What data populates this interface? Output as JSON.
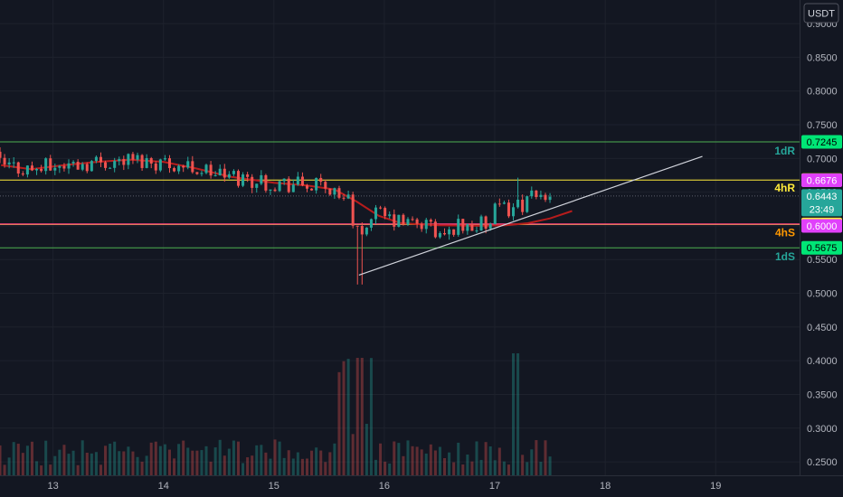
{
  "chart_data": {
    "type": "candlestick",
    "currency": "USDT",
    "y_axis": {
      "ticks": [
        "0.9000",
        "0.8500",
        "0.8000",
        "0.7500",
        "0.7000",
        "0.6500",
        "0.6000",
        "0.5500",
        "0.5000",
        "0.4500",
        "0.4000",
        "0.3500",
        "0.3000",
        "0.2500"
      ],
      "ylim": [
        0.23,
        0.935
      ],
      "scale": "linear"
    },
    "x_axis": {
      "ticks": [
        "13",
        "14",
        "15",
        "16",
        "17",
        "18",
        "19"
      ],
      "xlim": [
        12.52,
        19.76
      ]
    },
    "levels": [
      {
        "name": "1dR",
        "price": 0.7245,
        "price_label": "0.7245",
        "color": "#4caf50",
        "label_color": "#26a69a",
        "badge_bg": "#00e676"
      },
      {
        "name": "4hR",
        "price": 0.668,
        "price_label": "0.6680",
        "color": "#ffeb3b",
        "label_color": "#ffeb3b",
        "badge_bg": "#ffeb3b"
      },
      {
        "name": "4hS",
        "price": 0.6021,
        "price_label": "0.6021",
        "color": "#ffeb3b",
        "label_color": "#ff9800",
        "badge_bg": "#ffeb3b"
      },
      {
        "name": "1dS",
        "price": 0.5675,
        "price_label": "0.5675",
        "color": "#4caf50",
        "label_color": "#26a69a",
        "badge_bg": "#00e676"
      }
    ],
    "extra_labels": [
      {
        "text": "0.6676",
        "price": 0.6676,
        "bg": "#e040fb",
        "fg": "#ffffff"
      },
      {
        "text": "0.6000",
        "price": 0.6,
        "bg": "#e040fb",
        "fg": "#ffffff"
      }
    ],
    "current_price": {
      "value": 0.6443,
      "label": "0.6443",
      "countdown": "23:49",
      "color": "#26a69a"
    },
    "pink_line": {
      "price": 0.6028,
      "color": "#ff4081"
    },
    "dotted_line": {
      "price": 0.6443
    },
    "trendline": {
      "start": {
        "x": 15.77,
        "y": 0.527
      },
      "end": {
        "x": 18.88,
        "y": 0.703
      },
      "color": "#d1d4dc"
    },
    "ma": {
      "color": "#b71c1c",
      "points": [
        [
          12.53,
          0.69
        ],
        [
          12.8,
          0.684
        ],
        [
          13.1,
          0.69
        ],
        [
          13.4,
          0.695
        ],
        [
          13.7,
          0.698
        ],
        [
          14.0,
          0.695
        ],
        [
          14.3,
          0.685
        ],
        [
          14.6,
          0.673
        ],
        [
          15.0,
          0.664
        ],
        [
          15.3,
          0.66
        ],
        [
          15.55,
          0.654
        ],
        [
          15.75,
          0.636
        ],
        [
          15.95,
          0.615
        ],
        [
          16.15,
          0.604
        ],
        [
          16.5,
          0.601
        ],
        [
          16.85,
          0.6
        ],
        [
          17.1,
          0.601
        ],
        [
          17.3,
          0.604
        ],
        [
          17.5,
          0.611
        ],
        [
          17.7,
          0.622
        ]
      ]
    },
    "candles": [
      [
        12.5,
        0.7131,
        0.7121,
        0.7131,
        0.7121
      ],
      [
        12.53,
        0.7121,
        0.7131,
        0.7131,
        0.7121
      ],
      [
        12.56,
        0.7131,
        0.7121,
        0.7131,
        0.7121
      ],
      [
        12.59,
        0.7121,
        0.7131,
        0.7131,
        0.7121
      ],
      [
        12.62,
        0.7131,
        0.7121,
        0.7131,
        0.7121
      ],
      [
        12.65,
        0.7121,
        0.7131,
        0.7131,
        0.7121
      ],
      [
        12.68,
        0.7131,
        0.7121,
        0.7131,
        0.7121
      ],
      [
        12.71,
        0.7121,
        0.7131,
        0.7131,
        0.7121
      ],
      [
        12.74,
        0.7131,
        0.7121,
        0.7131,
        0.7121
      ],
      [
        12.77,
        0.7121,
        0.7131,
        0.7131,
        0.7121
      ],
      [
        12.8,
        0.7131,
        0.7121,
        0.7131,
        0.7121
      ],
      [
        12.83,
        0.7121,
        0.7131,
        0.7131,
        0.7121
      ],
      [
        12.86,
        0.7131,
        0.7121,
        0.7131,
        0.7121
      ],
      [
        12.89,
        0.7121,
        0.7131,
        0.7131,
        0.7121
      ],
      [
        12.92,
        0.7131,
        0.7121,
        0.7131,
        0.7121
      ],
      [
        12.95,
        0.7121,
        0.7131,
        0.7131,
        0.7121
      ],
      [
        12.98,
        0.7131,
        0.7121,
        0.7131,
        0.7121
      ],
      [
        13.01,
        0.7121,
        0.7131,
        0.7131,
        0.7121
      ],
      [
        13.04,
        0.7131,
        0.7121,
        0.7131,
        0.7121
      ],
      [
        13.07,
        0.7121,
        0.7131,
        0.7131,
        0.7121
      ],
      [
        13.1,
        0.7131,
        0.7121,
        0.7131,
        0.7121
      ],
      [
        13.13,
        0.7121,
        0.7131,
        0.7131,
        0.7121
      ],
      [
        13.16,
        0.7131,
        0.7121,
        0.7131,
        0.7121
      ],
      [
        13.19,
        0.7121,
        0.7131,
        0.7131,
        0.7121
      ],
      [
        13.22,
        0.7131,
        0.7121,
        0.7131,
        0.7121
      ],
      [
        13.25,
        0.7121,
        0.7131,
        0.7131,
        0.7121
      ],
      [
        13.28,
        0.7131,
        0.7121,
        0.7131,
        0.7121
      ],
      [
        13.31,
        0.7121,
        0.7131,
        0.7131,
        0.7121
      ],
      [
        13.34,
        0.7131,
        0.7121,
        0.7131,
        0.7121
      ],
      [
        13.37,
        0.7121,
        0.7131,
        0.7131,
        0.7121
      ],
      [
        13.4,
        0.7131,
        0.7121,
        0.7131,
        0.7121
      ],
      [
        13.43,
        0.7121,
        0.7131,
        0.7131,
        0.7121
      ],
      [
        13.46,
        0.7131,
        0.7121,
        0.7131,
        0.7121
      ],
      [
        13.49,
        0.7121,
        0.7131,
        0.7131,
        0.7121
      ],
      [
        13.52,
        0.7131,
        0.7121,
        0.7131,
        0.7121
      ],
      [
        13.55,
        0.7121,
        0.7131,
        0.7131,
        0.7121
      ],
      [
        13.58,
        0.7131,
        0.7121,
        0.7131,
        0.7121
      ],
      [
        13.61,
        0.7121,
        0.7131,
        0.7131,
        0.7121
      ],
      [
        13.64,
        0.7131,
        0.7121,
        0.7131,
        0.7121
      ],
      [
        13.67,
        0.7121,
        0.7131,
        0.7131,
        0.7121
      ],
      [
        13.7,
        0.7131,
        0.7121,
        0.7131,
        0.7121
      ],
      [
        13.73,
        0.7121,
        0.7131,
        0.7131,
        0.7121
      ],
      [
        13.76,
        0.7131,
        0.7121,
        0.7131,
        0.7121
      ],
      [
        13.79,
        0.7121,
        0.7131,
        0.7131,
        0.7121
      ],
      [
        13.82,
        0.7131,
        0.7121,
        0.7131,
        0.7121
      ],
      [
        13.85,
        0.7121,
        0.7131,
        0.7131,
        0.7121
      ],
      [
        13.88,
        0.7131,
        0.7121,
        0.7131,
        0.7121
      ],
      [
        13.91,
        0.7121,
        0.7131,
        0.7131,
        0.7121
      ],
      [
        13.94,
        0.7131,
        0.7121,
        0.7131,
        0.7121
      ],
      [
        13.97,
        0.7121,
        0.7131,
        0.7131,
        0.7121
      ],
      [
        14.0,
        0.7131,
        0.7121,
        0.7131,
        0.7121
      ],
      [
        14.03,
        0.7121,
        0.7131,
        0.7131,
        0.7121
      ],
      [
        14.06,
        0.7131,
        0.7121,
        0.7131,
        0.7121
      ],
      [
        14.09,
        0.7121,
        0.7131,
        0.7131,
        0.7121
      ],
      [
        14.12,
        0.7131,
        0.7121,
        0.7131,
        0.7121
      ],
      [
        14.15,
        0.7121,
        0.7131,
        0.7131,
        0.7121
      ]
    ]
  }
}
